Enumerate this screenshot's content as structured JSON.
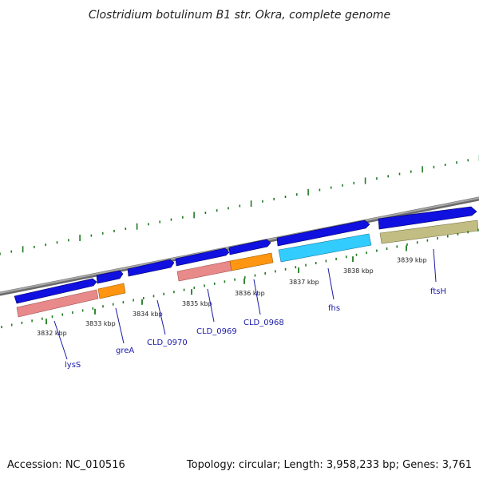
{
  "title": "Clostridium botulinum B1 str. Okra, complete genome",
  "footer": {
    "accession": "Accession: NC_010516",
    "summary": "Topology: circular; Length: 3,958,233 bp; Genes: 3,761"
  },
  "ticks": [
    "3832 kbp",
    "3833 kbp",
    "3834 kbp",
    "3835 kbp",
    "3836 kbp",
    "3837 kbp",
    "3838 kbp",
    "3839 kbp"
  ],
  "gene_labels": [
    "lysS",
    "greA",
    "CLD_0970",
    "CLD_0969",
    "CLD_0968",
    "fhs",
    "ftsH"
  ],
  "colors": {
    "cds": "#1010e0",
    "rrna_pink": "#e88a8a",
    "orange": "#ff9510",
    "cyan": "#33ccff",
    "olive": "#c2bd82",
    "backbone": "#8a8a8a",
    "tick_green": "#1f7a1f",
    "label_blue": "#1a1aa8"
  }
}
